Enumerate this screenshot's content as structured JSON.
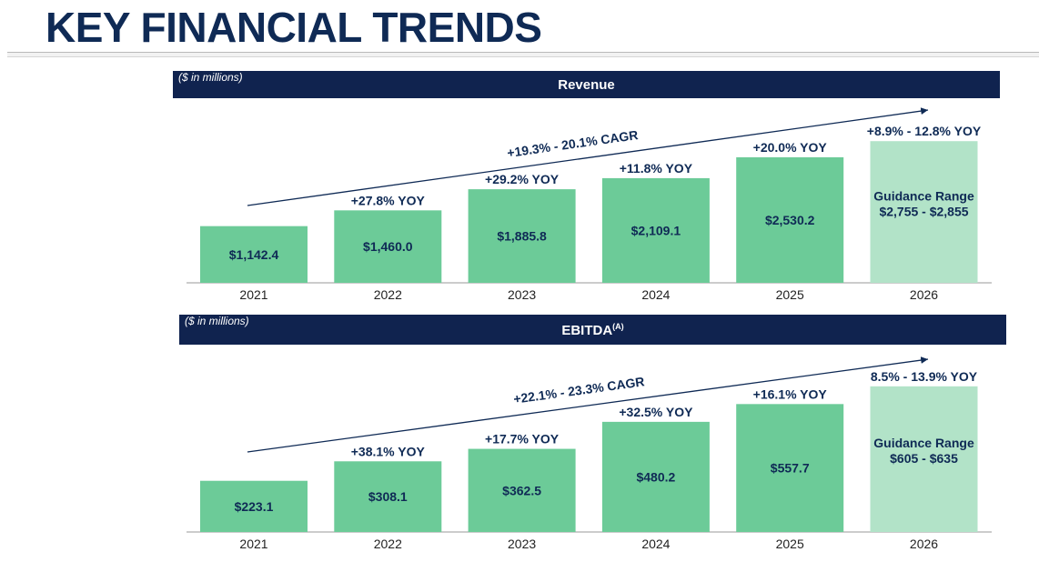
{
  "page_title": "KEY FINANCIAL TRENDS",
  "colors": {
    "navy": "#10234f",
    "text_navy": "#0f2a55",
    "bar": "#6ccb98",
    "guidance_bar": "#b2e3c8",
    "axis": "#9a9a9a"
  },
  "chart_data": [
    {
      "type": "bar",
      "title": "Revenue",
      "unit_note": "($ in millions)",
      "categories": [
        "2021",
        "2022",
        "2023",
        "2024",
        "2025",
        "2026"
      ],
      "values": [
        1142.4,
        1460.0,
        1885.8,
        2109.1,
        2530.2,
        2855.0
      ],
      "value_labels": [
        "$1,142.4",
        "$1,460.0",
        "$1,885.8",
        "$2,109.1",
        "$2,530.2",
        ""
      ],
      "yoy_labels": [
        "",
        "+27.8% YOY",
        "+29.2% YOY",
        "+11.8% YOY",
        "+20.0% YOY",
        "+8.9% - 12.8% YOY"
      ],
      "guidance": {
        "index": 5,
        "label": "Guidance Range",
        "range": "$2,755 - $2,855",
        "low": 2755,
        "high": 2855
      },
      "cagr_label": "+19.3% - 20.1% CAGR",
      "ylim": [
        0,
        3000
      ]
    },
    {
      "type": "bar",
      "title": "EBITDA",
      "title_superscript": "(A)",
      "unit_note": "($ in millions)",
      "categories": [
        "2021",
        "2022",
        "2023",
        "2024",
        "2025",
        "2026"
      ],
      "values": [
        223.1,
        308.1,
        362.5,
        480.2,
        557.7,
        635.0
      ],
      "value_labels": [
        "$223.1",
        "$308.1",
        "$362.5",
        "$480.2",
        "$557.7",
        ""
      ],
      "yoy_labels": [
        "",
        "+38.1% YOY",
        "+17.7% YOY",
        "+32.5% YOY",
        "+16.1% YOY",
        "8.5% - 13.9% YOY"
      ],
      "guidance": {
        "index": 5,
        "label": "Guidance Range",
        "range": "$605 - $635",
        "low": 605,
        "high": 635
      },
      "cagr_label": "+22.1% - 23.3% CAGR",
      "ylim": [
        0,
        670
      ]
    }
  ]
}
